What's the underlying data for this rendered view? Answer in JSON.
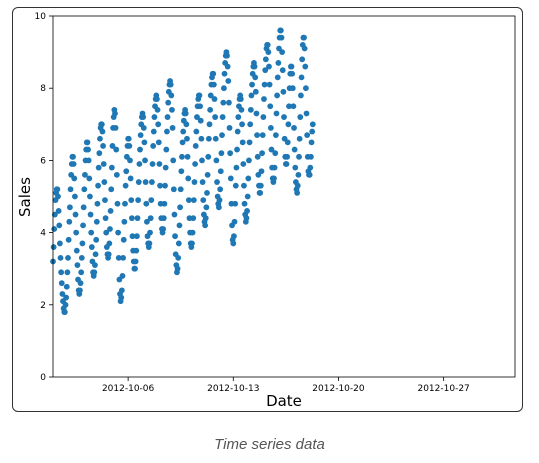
{
  "caption": "Time series data",
  "chart_data": {
    "type": "scatter",
    "title": "",
    "xlabel": "Date",
    "ylabel": "Sales",
    "xlim": [
      "2012-10-01T00:00",
      "2012-10-31T18:00"
    ],
    "ylim": [
      0,
      10
    ],
    "x_ticks": [
      "2012-10-06",
      "2012-10-13",
      "2012-10-20",
      "2012-10-27"
    ],
    "y_ticks": [
      0,
      2,
      4,
      6,
      8,
      10
    ],
    "grid": false,
    "marker_color": "#1f77b4",
    "series": [
      {
        "sampling": "hourly",
        "start": "2012-10-01T00:00",
        "values": [
          3.2,
          3.6,
          4.1,
          4.5,
          4.9,
          5.1,
          5.2,
          5.2,
          5.0,
          4.6,
          4.2,
          3.7,
          3.3,
          2.9,
          2.6,
          2.3,
          2.1,
          1.9,
          1.8,
          1.8,
          2.0,
          2.2,
          2.5,
          2.9,
          3.3,
          3.8,
          4.3,
          4.7,
          5.2,
          5.6,
          5.9,
          6.1,
          6.1,
          5.9,
          5.5,
          5.0,
          4.5,
          4.0,
          3.5,
          3.1,
          2.7,
          2.4,
          2.3,
          2.4,
          2.6,
          2.9,
          3.3,
          3.7,
          4.2,
          4.7,
          5.2,
          5.6,
          6.0,
          6.3,
          6.5,
          6.5,
          6.3,
          6.0,
          5.5,
          5.0,
          4.5,
          4.0,
          3.6,
          3.2,
          2.9,
          2.8,
          2.9,
          3.1,
          3.4,
          3.8,
          4.3,
          4.8,
          5.3,
          5.8,
          6.2,
          6.6,
          6.9,
          7.0,
          7.0,
          6.8,
          6.4,
          5.9,
          5.4,
          4.9,
          4.4,
          4.0,
          3.6,
          3.4,
          3.3,
          3.4,
          3.7,
          4.1,
          4.6,
          5.2,
          5.8,
          6.4,
          6.9,
          7.2,
          7.4,
          7.3,
          6.9,
          6.3,
          5.6,
          4.8,
          4.0,
          3.3,
          2.7,
          2.3,
          2.1,
          2.2,
          2.4,
          2.8,
          3.3,
          3.8,
          4.3,
          4.8,
          5.3,
          5.7,
          6.1,
          6.4,
          6.6,
          6.6,
          6.4,
          6.0,
          5.5,
          4.9,
          4.4,
          3.9,
          3.5,
          3.2,
          3.0,
          3.0,
          3.2,
          3.5,
          3.9,
          4.4,
          4.9,
          5.4,
          5.9,
          6.3,
          6.7,
          7.0,
          7.2,
          7.3,
          7.2,
          6.9,
          6.5,
          6.0,
          5.4,
          4.8,
          4.3,
          3.9,
          3.7,
          3.6,
          3.7,
          4.0,
          4.4,
          4.9,
          5.4,
          5.9,
          6.4,
          6.8,
          7.2,
          7.5,
          7.7,
          7.8,
          7.7,
          7.4,
          7.0,
          6.5,
          5.9,
          5.3,
          4.8,
          4.4,
          4.1,
          4.0,
          4.1,
          4.4,
          4.8,
          5.3,
          5.8,
          6.3,
          6.8,
          7.2,
          7.6,
          7.9,
          8.1,
          8.2,
          8.1,
          7.8,
          7.4,
          6.9,
          6.0,
          5.2,
          4.5,
          3.9,
          3.4,
          3.1,
          2.9,
          3.0,
          3.3,
          3.7,
          4.2,
          4.7,
          5.2,
          5.7,
          6.1,
          6.5,
          6.8,
          7.1,
          7.3,
          7.4,
          7.3,
          7.0,
          6.6,
          6.1,
          5.5,
          4.9,
          4.4,
          4.0,
          3.7,
          3.6,
          3.7,
          4.0,
          4.4,
          4.9,
          5.4,
          5.9,
          6.4,
          6.8,
          7.2,
          7.5,
          7.7,
          7.8,
          7.8,
          7.5,
          7.1,
          6.6,
          6.0,
          5.4,
          4.9,
          4.5,
          4.3,
          4.2,
          4.4,
          4.7,
          5.1,
          5.6,
          6.1,
          6.6,
          7.0,
          7.4,
          7.8,
          8.1,
          8.3,
          8.4,
          8.4,
          8.1,
          7.7,
          7.2,
          6.6,
          6.0,
          5.4,
          5.0,
          4.8,
          4.7,
          4.9,
          5.2,
          5.7,
          6.2,
          6.7,
          7.2,
          7.6,
          8.0,
          8.4,
          8.7,
          8.9,
          9.0,
          8.9,
          8.6,
          8.2,
          7.6,
          6.9,
          6.2,
          5.5,
          4.8,
          4.2,
          3.8,
          3.7,
          3.9,
          4.3,
          4.8,
          5.3,
          5.8,
          6.3,
          6.8,
          7.2,
          7.5,
          7.7,
          7.8,
          7.7,
          7.4,
          7.0,
          6.5,
          5.9,
          5.3,
          4.8,
          4.5,
          4.3,
          4.4,
          4.6,
          5.0,
          5.5,
          6.0,
          6.5,
          7.0,
          7.4,
          7.8,
          8.1,
          8.4,
          8.6,
          8.7,
          8.6,
          8.3,
          7.9,
          7.3,
          6.7,
          6.1,
          5.6,
          5.3,
          5.1,
          5.1,
          5.3,
          5.7,
          6.2,
          6.7,
          7.2,
          7.7,
          8.1,
          8.5,
          8.8,
          9.1,
          9.2,
          9.2,
          9.0,
          8.6,
          8.1,
          7.5,
          6.9,
          6.3,
          5.8,
          5.5,
          5.4,
          5.5,
          5.8,
          6.2,
          6.7,
          7.3,
          7.8,
          8.3,
          8.7,
          9.1,
          9.4,
          9.6,
          9.6,
          9.4,
          9.0,
          8.5,
          7.9,
          7.2,
          6.6,
          6.1,
          5.9,
          5.9,
          6.1,
          6.5,
          7.0,
          7.5,
          8.0,
          8.4,
          8.6,
          8.6,
          8.4,
          8.0,
          7.5,
          6.9,
          6.3,
          5.8,
          5.4,
          5.2,
          5.1,
          5.3,
          5.6,
          6.1,
          6.6,
          7.2,
          7.8,
          8.3,
          8.8,
          9.2,
          9.4,
          9.4,
          9.1,
          8.6,
          8.0,
          7.3,
          6.7,
          6.1,
          5.7,
          5.6,
          5.6,
          5.8,
          6.1,
          6.5,
          6.8,
          7.0
        ]
      }
    ]
  }
}
